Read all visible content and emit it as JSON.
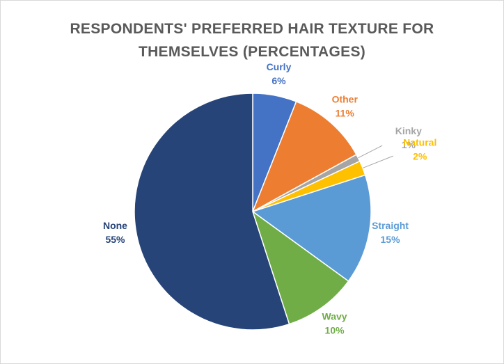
{
  "chart_data": {
    "type": "pie",
    "title": "RESPONDENTS' PREFERRED HAIR TEXTURE FOR THEMSELVES (PERCENTAGES)",
    "categories": [
      "Curly",
      "Other",
      "Kinky",
      "Natural",
      "Straight",
      "Wavy",
      "None"
    ],
    "values": [
      6,
      11,
      1,
      2,
      15,
      10,
      55
    ],
    "value_labels": [
      "6%",
      "11%",
      "1%",
      "2%",
      "15%",
      "10%",
      "55%"
    ],
    "colors": [
      "#4472c4",
      "#ed7d31",
      "#a5a5a5",
      "#ffc000",
      "#5b9bd5",
      "#70ad47",
      "#264478"
    ]
  }
}
